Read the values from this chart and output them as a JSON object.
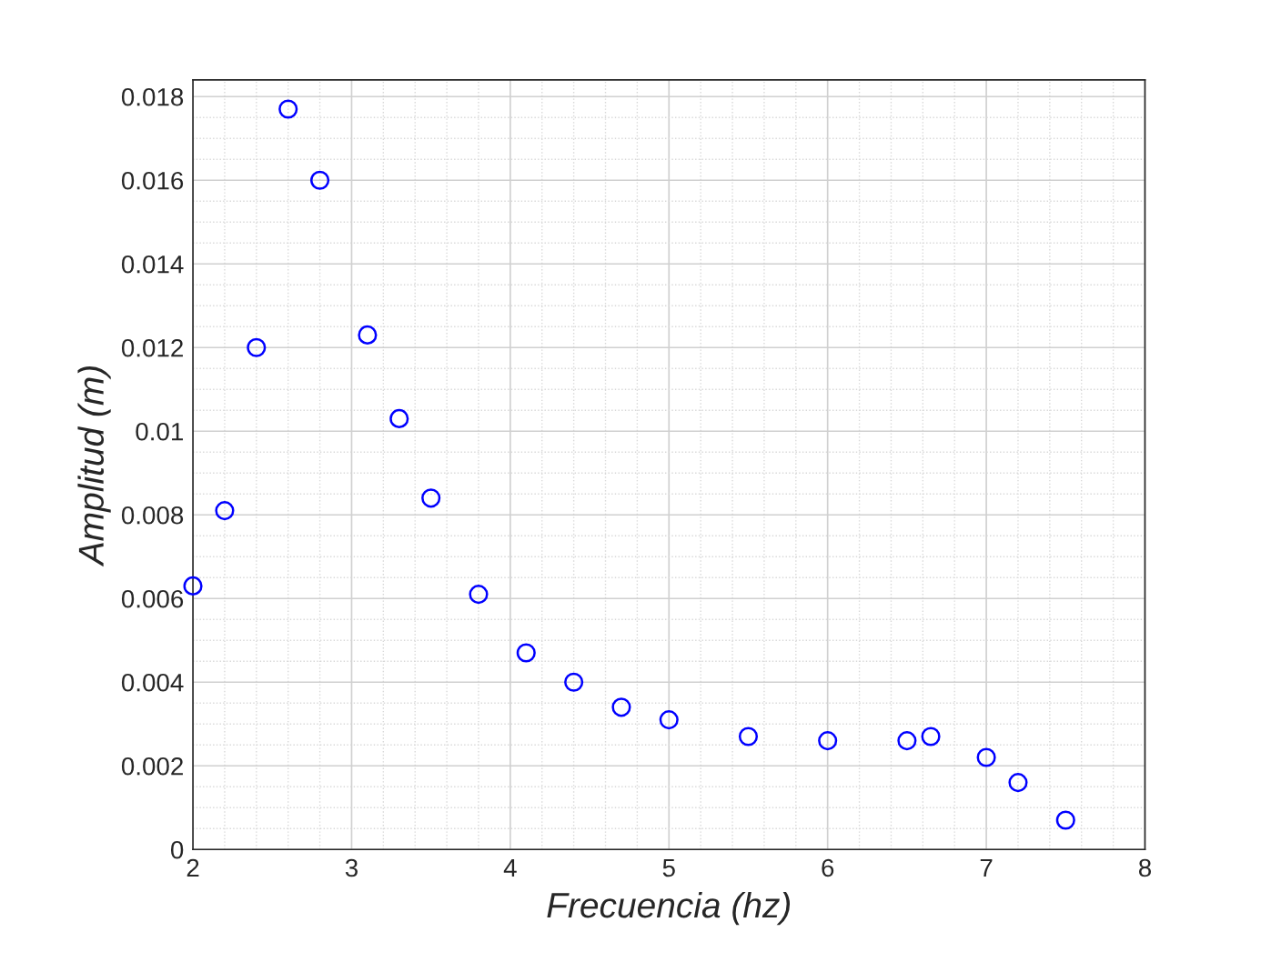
{
  "chart_data": {
    "type": "scatter",
    "xlabel": "Frecuencia (hz)",
    "ylabel": "Amplitud (m)",
    "x": [
      2.0,
      2.2,
      2.4,
      2.6,
      2.8,
      3.1,
      3.3,
      3.5,
      3.8,
      4.1,
      4.4,
      4.7,
      5.0,
      5.5,
      6.0,
      6.5,
      6.65,
      7.0,
      7.2,
      7.5
    ],
    "series": [
      {
        "color": "#0000ff",
        "values": [
          0.0063,
          0.0081,
          0.012,
          0.0177,
          0.016,
          0.0123,
          0.0103,
          0.0084,
          0.0061,
          0.0047,
          0.004,
          0.0034,
          0.0031,
          0.0027,
          0.0026,
          0.0026,
          0.0027,
          0.0022,
          0.0016,
          0.0007
        ]
      }
    ],
    "xlim": [
      2,
      8
    ],
    "xticks": [
      2,
      3,
      4,
      5,
      6,
      7,
      8
    ],
    "ylim": [
      0,
      0.0184
    ],
    "yticks": [
      0,
      0.002,
      0.004,
      0.006,
      0.008,
      0.01,
      0.012,
      0.014,
      0.016,
      0.018
    ],
    "grid": true,
    "marker": "circle",
    "legend": false
  }
}
